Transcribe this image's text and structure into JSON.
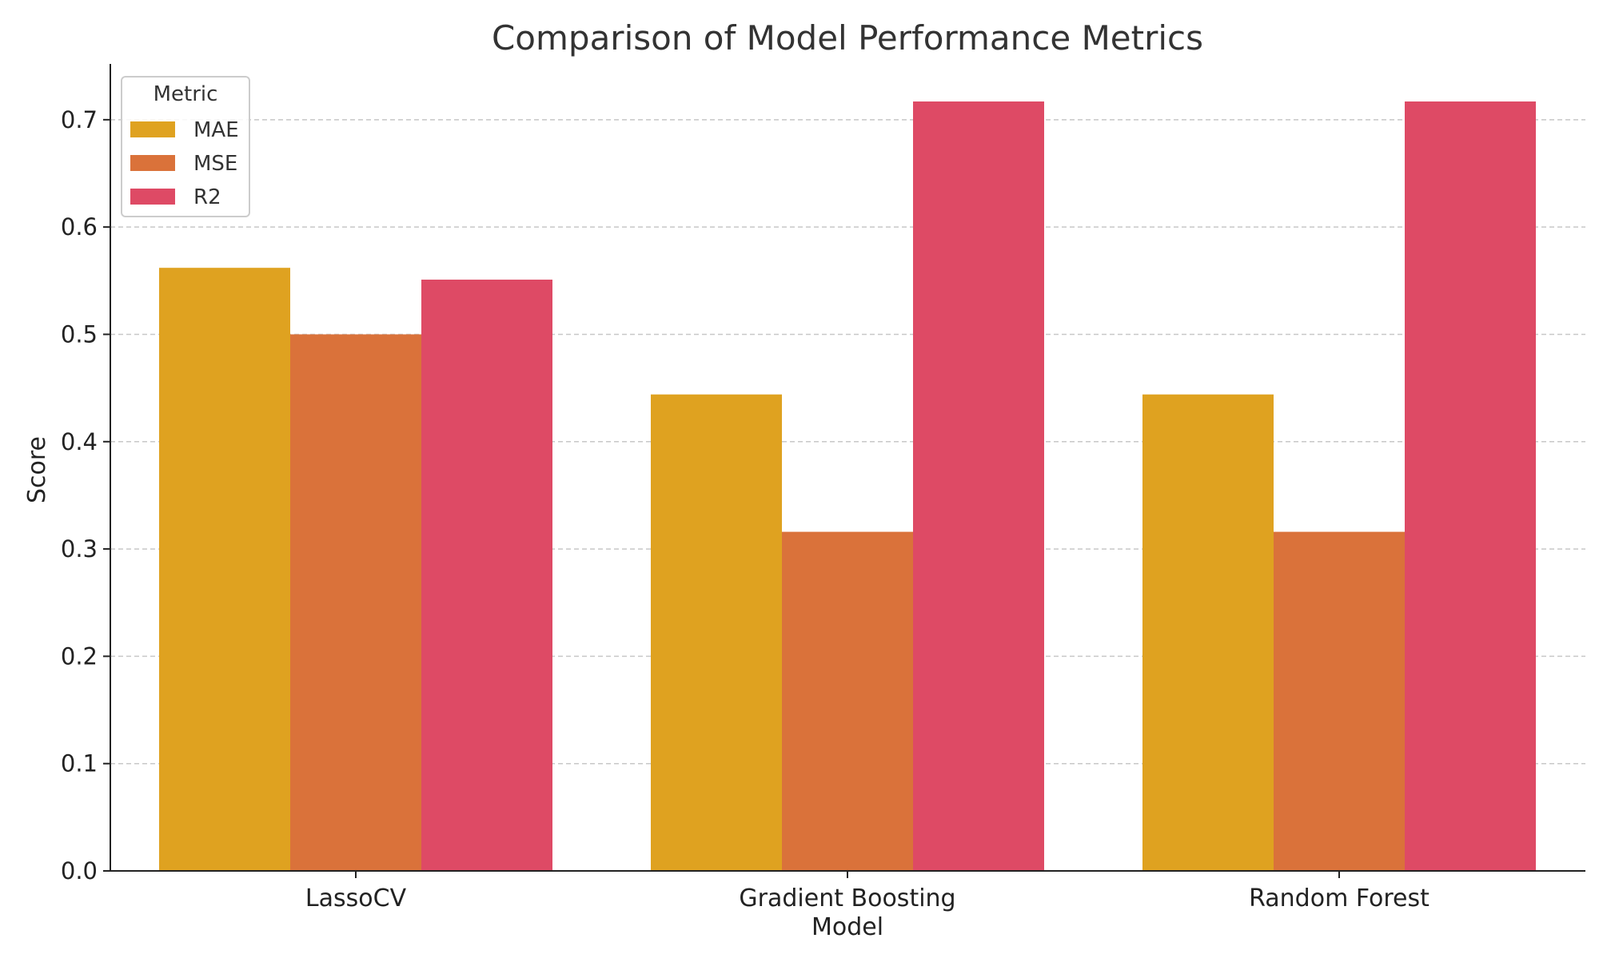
{
  "chart_data": {
    "type": "bar",
    "title": "Comparison of Model Performance Metrics",
    "xlabel": "Model",
    "ylabel": "Score",
    "categories": [
      "LassoCV",
      "Gradient Boosting",
      "Random Forest"
    ],
    "series": [
      {
        "name": "MAE",
        "color": "#DFA220",
        "values": [
          0.562,
          0.444,
          0.444
        ]
      },
      {
        "name": "MSE",
        "color": "#DA723A",
        "values": [
          0.5,
          0.316,
          0.316
        ]
      },
      {
        "name": "R2",
        "color": "#DE4A65",
        "values": [
          0.551,
          0.717,
          0.717
        ]
      }
    ],
    "ylim": [
      0,
      0.752
    ],
    "yticks": [
      0.0,
      0.1,
      0.2,
      0.3,
      0.4,
      0.5,
      0.6,
      0.7
    ],
    "ytick_labels": [
      "0.0",
      "0.1",
      "0.2",
      "0.3",
      "0.4",
      "0.5",
      "0.6",
      "0.7"
    ],
    "grid": "y-dashed",
    "legend": {
      "title": "Metric",
      "placement": "top-left"
    }
  }
}
